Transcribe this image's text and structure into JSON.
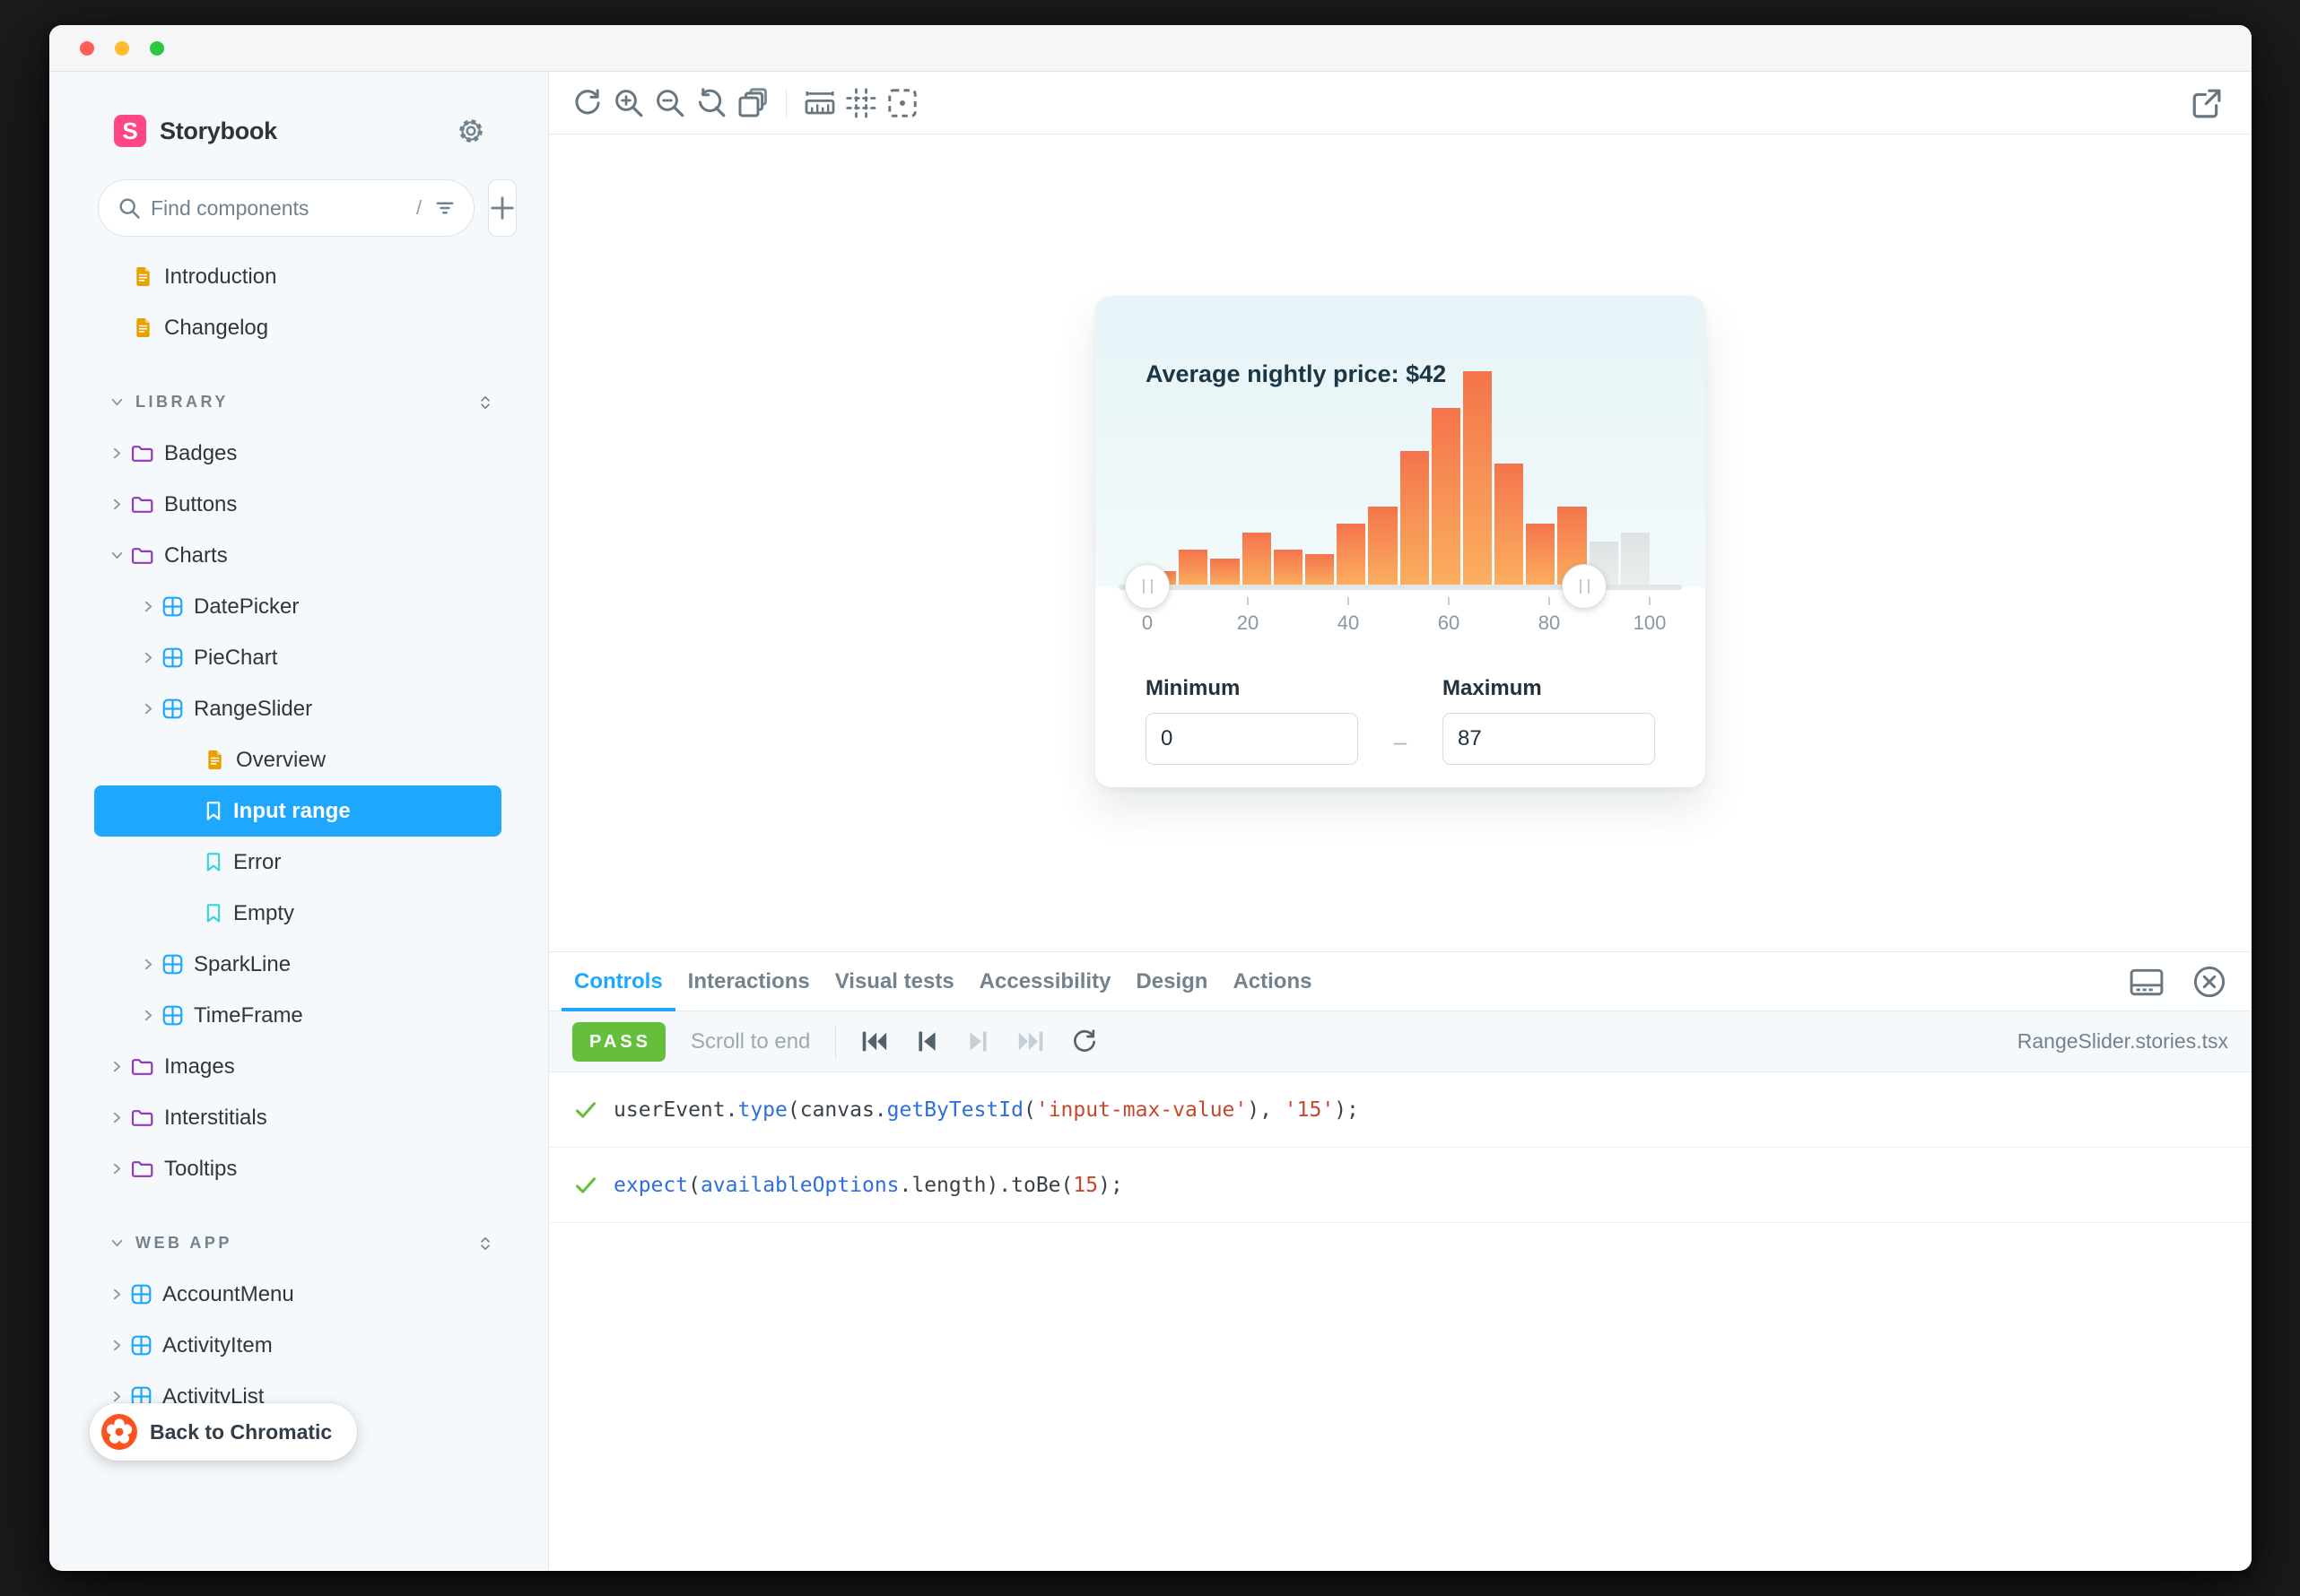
{
  "colors": {
    "accent": "#1EA7FD",
    "brand_pink": "#FF4785",
    "pass_green": "#66BF3C",
    "bar_gradient_top": "#F4744B",
    "bar_gradient_bottom": "#FBAF60",
    "inactive_bar": "#E0E3E4",
    "folder_purple": "#9238BD",
    "component_blue": "#1EA7FD",
    "doc_orange": "#E9A100",
    "story_teal": "#37D5D3"
  },
  "sidebar": {
    "brand": "Storybook",
    "gear_icon": "gear-icon",
    "search": {
      "placeholder": "Find components",
      "shortcut_hint": "/"
    },
    "tree": [
      {
        "label": "Introduction",
        "icon": "document",
        "indent": "root-doc"
      },
      {
        "label": "Changelog",
        "icon": "document",
        "indent": "root-doc"
      },
      {
        "label": "LIBRARY",
        "type": "section"
      },
      {
        "label": "Badges",
        "icon": "folder",
        "chevron": "right",
        "indent": "root"
      },
      {
        "label": "Buttons",
        "icon": "folder",
        "chevron": "right",
        "indent": "root"
      },
      {
        "label": "Charts",
        "icon": "folder",
        "chevron": "down",
        "indent": "root"
      },
      {
        "label": "DatePicker",
        "icon": "component",
        "chevron": "right",
        "indent": "l2"
      },
      {
        "label": "PieChart",
        "icon": "component",
        "chevron": "right",
        "indent": "l2"
      },
      {
        "label": "RangeSlider",
        "icon": "component",
        "chevron": "right",
        "indent": "l2"
      },
      {
        "label": "Overview",
        "icon": "document",
        "indent": "l3"
      },
      {
        "label": "Input range",
        "icon": "bookmark",
        "indent": "l3",
        "selected": true
      },
      {
        "label": "Error",
        "icon": "bookmark",
        "indent": "l3"
      },
      {
        "label": "Empty",
        "icon": "bookmark",
        "indent": "l3"
      },
      {
        "label": "SparkLine",
        "icon": "component",
        "chevron": "right",
        "indent": "l2"
      },
      {
        "label": "TimeFrame",
        "icon": "component",
        "chevron": "right",
        "indent": "l2"
      },
      {
        "label": "Images",
        "icon": "folder",
        "chevron": "right",
        "indent": "root"
      },
      {
        "label": "Interstitials",
        "icon": "folder",
        "chevron": "right",
        "indent": "root"
      },
      {
        "label": "Tooltips",
        "icon": "folder",
        "chevron": "right",
        "indent": "root"
      },
      {
        "label": "WEB APP",
        "type": "section"
      },
      {
        "label": "AccountMenu",
        "icon": "component",
        "chevron": "right",
        "indent": "root"
      },
      {
        "label": "ActivityItem",
        "icon": "component",
        "chevron": "right",
        "indent": "root"
      },
      {
        "label": "ActivityList",
        "icon": "component",
        "chevron": "right",
        "indent": "root"
      }
    ],
    "back_to_chromatic": "Back to Chromatic"
  },
  "canvas": {
    "toolbar_groups": [
      [
        "remount",
        "zoom-in",
        "zoom-out",
        "zoom-reset",
        "backgrounds"
      ],
      [
        "measure",
        "grid",
        "outline"
      ]
    ],
    "external_icon": "open-in-new-tab"
  },
  "preview": {
    "title": "Average nightly price: $42",
    "minimum_label": "Minimum",
    "maximum_label": "Maximum",
    "minimum_value": "0",
    "maximum_value": "87",
    "separator": "–"
  },
  "chart_data": {
    "type": "bar",
    "title": "Average nightly price: $42",
    "x_range": [
      0,
      100
    ],
    "bin_width": 6.25,
    "values_rel_height_pct": [
      7,
      17,
      13,
      25,
      17,
      15,
      29,
      37,
      63,
      83,
      100,
      57,
      29,
      37,
      21,
      25
    ],
    "selected_range": [
      0,
      87
    ],
    "x_ticks": [
      0,
      20,
      40,
      60,
      80,
      100
    ],
    "grid": false,
    "legend": null,
    "ylabel": "",
    "xlabel": ""
  },
  "panel": {
    "tabs": [
      {
        "label": "Controls",
        "active": true
      },
      {
        "label": "Interactions",
        "active": false
      },
      {
        "label": "Visual tests",
        "active": false
      },
      {
        "label": "Accessibility",
        "active": false
      },
      {
        "label": "Design",
        "active": false
      },
      {
        "label": "Actions",
        "active": false
      }
    ],
    "status_badge": "PASS",
    "scroll_to_end": "Scroll to end",
    "playback": [
      {
        "icon": "play-start",
        "enabled": true
      },
      {
        "icon": "play-back",
        "enabled": true
      },
      {
        "icon": "play-forward",
        "enabled": false
      },
      {
        "icon": "play-end",
        "enabled": false
      },
      {
        "icon": "rerun",
        "enabled": true
      }
    ],
    "filename": "RangeSlider.stories.tsx",
    "steps": [
      {
        "tokens": [
          {
            "t": "userEvent.",
            "c": "plain"
          },
          {
            "t": "type",
            "c": "fn"
          },
          {
            "t": "(canvas.",
            "c": "plain"
          },
          {
            "t": "getByTestId",
            "c": "fn"
          },
          {
            "t": "(",
            "c": "plain"
          },
          {
            "t": "'input-max-value'",
            "c": "str"
          },
          {
            "t": "), ",
            "c": "plain"
          },
          {
            "t": "'15'",
            "c": "str"
          },
          {
            "t": ");",
            "c": "plain"
          }
        ]
      },
      {
        "tokens": [
          {
            "t": "expect",
            "c": "fn"
          },
          {
            "t": "(",
            "c": "plain"
          },
          {
            "t": "availableOptions",
            "c": "fn"
          },
          {
            "t": ".length).toBe(",
            "c": "plain"
          },
          {
            "t": "15",
            "c": "num"
          },
          {
            "t": ");",
            "c": "plain"
          }
        ]
      }
    ]
  }
}
